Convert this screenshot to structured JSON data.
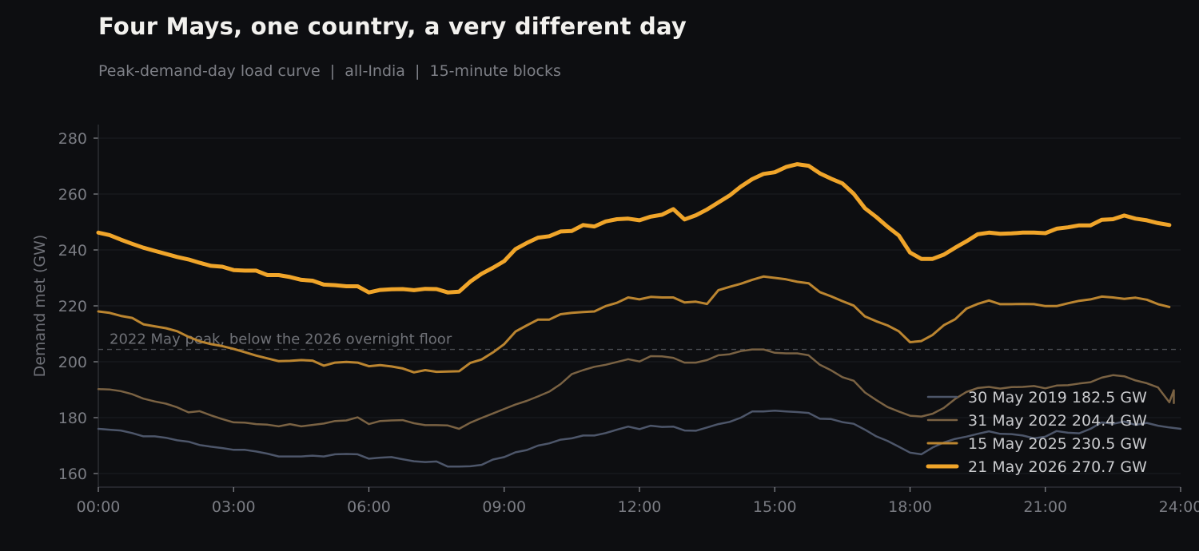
{
  "chart_data": {
    "type": "line",
    "title": "Four Mays, one country, a very different day",
    "subtitle": "Peak-demand-day load curve  |  all-India  |  15-minute blocks",
    "xlabel": "",
    "ylabel": "Demand met (GW)",
    "xlim": [
      0,
      24
    ],
    "ylim": [
      155,
      285
    ],
    "x_ticks": [
      "00:00",
      "03:00",
      "06:00",
      "09:00",
      "12:00",
      "15:00",
      "18:00",
      "21:00",
      "24:00"
    ],
    "y_ticks": [
      160,
      180,
      200,
      220,
      240,
      260,
      280
    ],
    "grid": "horizontal",
    "legend_position": "bottom-right",
    "reference_line": {
      "y": 204.4,
      "label": "2022 May peak, below the 2026 overnight floor",
      "color": "#4a4c52"
    },
    "series": [
      {
        "name": "30 May 2019  182.5 GW",
        "color": "#4d566a",
        "width": 2.5,
        "x": [
          0,
          0.25,
          0.5,
          0.75,
          1,
          1.25,
          1.5,
          1.75,
          2,
          2.25,
          2.5,
          2.75,
          3,
          3.25,
          3.5,
          3.75,
          4,
          4.25,
          4.5,
          4.75,
          5,
          5.25,
          5.5,
          5.75,
          6,
          6.25,
          6.5,
          6.75,
          7,
          7.25,
          7.5,
          7.75,
          8,
          8.25,
          8.5,
          8.75,
          9,
          9.25,
          9.5,
          9.75,
          10,
          10.25,
          10.5,
          10.75,
          11,
          11.25,
          11.5,
          11.75,
          12,
          12.25,
          12.5,
          12.75,
          13,
          13.25,
          13.5,
          13.75,
          14,
          14.25,
          14.5,
          14.75,
          15,
          15.25,
          15.5,
          15.75,
          16,
          16.25,
          16.5,
          16.75,
          17,
          17.25,
          17.5,
          17.75,
          18,
          18.25,
          18.5,
          18.75,
          19,
          19.25,
          19.5,
          19.75,
          20,
          20.25,
          20.5,
          20.75,
          21,
          21.25,
          21.5,
          21.75,
          22,
          22.25,
          22.5,
          22.75,
          23,
          23.25,
          23.5,
          23.75,
          24
        ],
        "y": [
          176,
          175.7,
          175.4,
          174.5,
          173.3,
          173.3,
          172.8,
          171.9,
          171.4,
          170.2,
          169.6,
          169.1,
          168.5,
          168.5,
          167.9,
          167.1,
          166.1,
          166.1,
          166.1,
          166.4,
          166.1,
          166.9,
          167,
          166.9,
          165.3,
          165.7,
          165.9,
          165.1,
          164.4,
          164.1,
          164.3,
          162.5,
          162.5,
          162.6,
          163.1,
          165,
          165.9,
          167.6,
          168.4,
          170,
          170.8,
          172.1,
          172.6,
          173.6,
          173.6,
          174.5,
          175.7,
          176.8,
          175.9,
          177.1,
          176.7,
          176.8,
          175.4,
          175.3,
          176.5,
          177.7,
          178.5,
          180,
          182.2,
          182.2,
          182.5,
          182.2,
          182,
          181.7,
          179.6,
          179.5,
          178.4,
          177.8,
          175.7,
          173.3,
          171.7,
          169.6,
          167.5,
          166.9,
          169.3,
          171.1,
          172.4,
          173.2,
          174.2,
          175.1,
          174.2,
          174.1,
          173.6,
          172.6,
          173.2,
          175.2,
          174.6,
          174.4,
          176,
          178.3,
          177.8,
          178.6,
          177.4,
          178.1,
          177.1,
          176.5,
          176
        ]
      },
      {
        "name": "31 May 2022  204.4 GW",
        "color": "#7a6243",
        "width": 2.5,
        "x": [
          0,
          0.25,
          0.5,
          0.75,
          1,
          1.25,
          1.5,
          1.75,
          2,
          2.25,
          2.5,
          2.75,
          3,
          3.25,
          3.5,
          3.75,
          4,
          4.25,
          4.5,
          4.75,
          5,
          5.25,
          5.5,
          5.75,
          6,
          6.25,
          6.5,
          6.75,
          7,
          7.25,
          7.5,
          7.75,
          8,
          8.25,
          8.5,
          8.75,
          9,
          9.25,
          9.5,
          9.75,
          10,
          10.25,
          10.5,
          10.75,
          11,
          11.25,
          11.5,
          11.75,
          12,
          12.25,
          12.5,
          12.75,
          13,
          13.25,
          13.5,
          13.75,
          14,
          14.25,
          14.5,
          14.75,
          15,
          15.25,
          15.5,
          15.75,
          16,
          16.25,
          16.5,
          16.75,
          17,
          17.25,
          17.5,
          17.75,
          18,
          18.25,
          18.5,
          18.75,
          19,
          19.25,
          19.5,
          19.75,
          20,
          20.25,
          20.5,
          20.75,
          21,
          21.25,
          21.5,
          21.75,
          22,
          22.25,
          22.5,
          22.75,
          23,
          23.25,
          23.5,
          23.75,
          23.85,
          23.85
        ],
        "y": [
          190.2,
          190.1,
          189.5,
          188.4,
          186.8,
          185.8,
          185,
          183.7,
          181.9,
          182.3,
          180.8,
          179.5,
          178.3,
          178.2,
          177.7,
          177.5,
          176.9,
          177.7,
          176.9,
          177.4,
          177.9,
          178.8,
          179,
          180.1,
          177.7,
          178.8,
          179,
          179.1,
          178,
          177.3,
          177.3,
          177.2,
          176,
          178.2,
          179.9,
          181.5,
          183.1,
          184.7,
          186,
          187.6,
          189.3,
          192,
          195.6,
          197,
          198.2,
          198.9,
          199.9,
          200.9,
          200.1,
          202,
          201.9,
          201.4,
          199.7,
          199.7,
          200.6,
          202.3,
          202.7,
          203.8,
          204.4,
          204.4,
          203.2,
          203,
          203,
          202.3,
          198.9,
          196.9,
          194.5,
          193.2,
          189,
          186.3,
          183.8,
          182.2,
          180.7,
          180.4,
          181.4,
          183.5,
          186.7,
          189.2,
          190.6,
          191,
          190.4,
          190.9,
          191,
          191.3,
          190.5,
          191.5,
          191.6,
          192.2,
          192.7,
          194.3,
          195.2,
          194.8,
          193.3,
          192.3,
          190.8,
          185.5,
          189.8,
          185.2
        ]
      },
      {
        "name": "15 May 2025  230.5 GW",
        "color": "#bb8530",
        "width": 3,
        "x": [
          0,
          0.25,
          0.5,
          0.75,
          1,
          1.25,
          1.5,
          1.75,
          2,
          2.25,
          2.5,
          2.75,
          3,
          3.25,
          3.5,
          3.75,
          4,
          4.25,
          4.5,
          4.75,
          5,
          5.25,
          5.5,
          5.75,
          6,
          6.25,
          6.5,
          6.75,
          7,
          7.25,
          7.5,
          7.75,
          8,
          8.25,
          8.5,
          8.75,
          9,
          9.25,
          9.5,
          9.75,
          10,
          10.25,
          10.5,
          10.75,
          11,
          11.25,
          11.5,
          11.75,
          12,
          12.25,
          12.5,
          12.75,
          13,
          13.25,
          13.5,
          13.75,
          14,
          14.25,
          14.5,
          14.75,
          15,
          15.25,
          15.5,
          15.75,
          16,
          16.25,
          16.5,
          16.75,
          17,
          17.25,
          17.5,
          17.75,
          18,
          18.25,
          18.5,
          18.75,
          19,
          19.25,
          19.5,
          19.75,
          20,
          20.25,
          20.5,
          20.75,
          21,
          21.25,
          21.5,
          21.75,
          22,
          22.25,
          22.5,
          22.75,
          23,
          23.25,
          23.5,
          23.75
        ],
        "y": [
          218,
          217.5,
          216.4,
          215.7,
          213.4,
          212.7,
          212,
          210.9,
          208.9,
          207.3,
          206.3,
          205.6,
          204.6,
          203.4,
          202.2,
          201.2,
          200.2,
          200.3,
          200.6,
          200.4,
          198.6,
          199.7,
          199.9,
          199.7,
          198.4,
          198.8,
          198.3,
          197.6,
          196.2,
          197,
          196.4,
          196.5,
          196.6,
          199.6,
          200.8,
          203.3,
          206.3,
          210.8,
          213,
          215.1,
          215.1,
          217,
          217.5,
          217.8,
          218,
          219.9,
          221.1,
          223,
          222.3,
          223.2,
          223,
          223,
          221.2,
          221.5,
          220.7,
          225.6,
          226.8,
          227.9,
          229.3,
          230.5,
          230,
          229.5,
          228.6,
          228.1,
          224.9,
          223.4,
          221.7,
          220.1,
          216.2,
          214.5,
          213,
          210.9,
          207,
          207.4,
          209.6,
          213.1,
          215.2,
          219,
          220.7,
          221.9,
          220.6,
          220.6,
          220.7,
          220.6,
          219.9,
          219.9,
          220.9,
          221.8,
          222.3,
          223.3,
          223,
          222.5,
          222.9,
          222.2,
          220.6,
          219.6
        ]
      },
      {
        "name": "21 May 2026  270.7 GW",
        "color": "#f0a52a",
        "width": 5,
        "x": [
          0,
          0.25,
          0.5,
          0.75,
          1,
          1.25,
          1.5,
          1.75,
          2,
          2.25,
          2.5,
          2.75,
          3,
          3.25,
          3.5,
          3.75,
          4,
          4.25,
          4.5,
          4.75,
          5,
          5.25,
          5.5,
          5.75,
          6,
          6.25,
          6.5,
          6.75,
          7,
          7.25,
          7.5,
          7.75,
          8,
          8.25,
          8.5,
          8.75,
          9,
          9.25,
          9.5,
          9.75,
          10,
          10.25,
          10.5,
          10.75,
          11,
          11.25,
          11.5,
          11.75,
          12,
          12.25,
          12.5,
          12.75,
          13,
          13.25,
          13.5,
          13.75,
          14,
          14.25,
          14.5,
          14.75,
          15,
          15.25,
          15.5,
          15.75,
          16,
          16.25,
          16.5,
          16.75,
          17,
          17.25,
          17.5,
          17.75,
          18,
          18.25,
          18.5,
          18.75,
          19,
          19.25,
          19.5,
          19.75,
          20,
          20.25,
          20.5,
          20.75,
          21,
          21.25,
          21.5,
          21.75,
          22,
          22.25,
          22.5,
          22.75,
          23,
          23.25,
          23.5,
          23.75
        ],
        "y": [
          246.2,
          245.3,
          243.7,
          242.2,
          240.8,
          239.7,
          238.6,
          237.5,
          236.6,
          235.4,
          234.3,
          234,
          232.8,
          232.6,
          232.6,
          231,
          231,
          230.3,
          229.3,
          229,
          227.6,
          227.4,
          227,
          227,
          224.8,
          225.7,
          225.9,
          226,
          225.6,
          226.1,
          226,
          224.8,
          225.1,
          228.7,
          231.5,
          233.6,
          236,
          240.3,
          242.5,
          244.4,
          244.9,
          246.6,
          246.8,
          248.9,
          248.4,
          250.2,
          251,
          251.2,
          250.6,
          251.9,
          252.6,
          254.6,
          250.9,
          252.4,
          254.5,
          257,
          259.5,
          262.7,
          265.3,
          267.2,
          267.8,
          269.7,
          270.7,
          270.1,
          267.4,
          265.5,
          263.8,
          260.1,
          254.9,
          251.8,
          248.3,
          245.2,
          239.1,
          236.8,
          236.8,
          238.3,
          240.8,
          243.1,
          245.6,
          246.2,
          245.8,
          245.9,
          246.2,
          246.2,
          246,
          247.6,
          248.1,
          248.8,
          248.8,
          250.8,
          251,
          252.3,
          251.2,
          250.6,
          249.6,
          248.9
        ]
      }
    ]
  }
}
